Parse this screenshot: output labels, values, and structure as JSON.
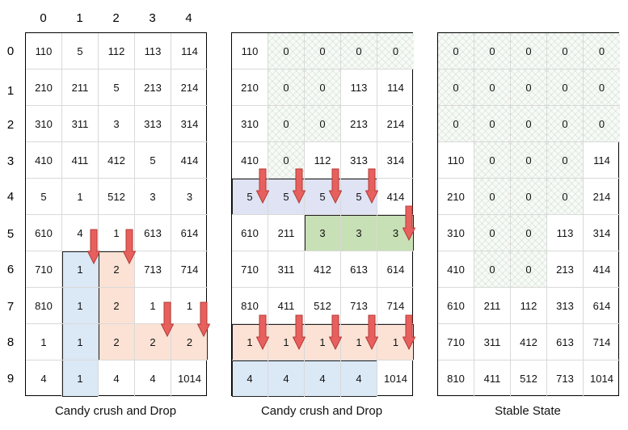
{
  "col_labels": [
    "0",
    "1",
    "2",
    "3",
    "4"
  ],
  "row_labels": [
    "0",
    "1",
    "2",
    "3",
    "4",
    "5",
    "6",
    "7",
    "8",
    "9"
  ],
  "panels": [
    {
      "caption": "Candy crush and Drop",
      "grid": [
        [
          "110",
          "5",
          "112",
          "113",
          "114"
        ],
        [
          "210",
          "211",
          "5",
          "213",
          "214"
        ],
        [
          "310",
          "311",
          "3",
          "313",
          "314"
        ],
        [
          "410",
          "411",
          "412",
          "5",
          "414"
        ],
        [
          "5",
          "1",
          "512",
          "3",
          "3"
        ],
        [
          "610",
          "4",
          "1",
          "613",
          "614"
        ],
        [
          "710",
          "1",
          "2",
          "713",
          "714"
        ],
        [
          "810",
          "1",
          "2",
          "1",
          "1"
        ],
        [
          "1",
          "1",
          "2",
          "2",
          "2"
        ],
        [
          "4",
          "1",
          "4",
          "4",
          "1014"
        ]
      ]
    },
    {
      "caption": "Candy crush and Drop",
      "grid": [
        [
          "110",
          "0",
          "0",
          "0",
          "0"
        ],
        [
          "210",
          "0",
          "0",
          "113",
          "114"
        ],
        [
          "310",
          "0",
          "0",
          "213",
          "214"
        ],
        [
          "410",
          "0",
          "112",
          "313",
          "314"
        ],
        [
          "5",
          "5",
          "5",
          "5",
          "414"
        ],
        [
          "610",
          "211",
          "3",
          "3",
          "3"
        ],
        [
          "710",
          "311",
          "412",
          "613",
          "614"
        ],
        [
          "810",
          "411",
          "512",
          "713",
          "714"
        ],
        [
          "1",
          "1",
          "1",
          "1",
          "1"
        ],
        [
          "4",
          "4",
          "4",
          "4",
          "1014"
        ]
      ]
    },
    {
      "caption": "Stable State",
      "grid": [
        [
          "0",
          "0",
          "0",
          "0",
          "0"
        ],
        [
          "0",
          "0",
          "0",
          "0",
          "0"
        ],
        [
          "0",
          "0",
          "0",
          "0",
          "0"
        ],
        [
          "110",
          "0",
          "0",
          "0",
          "114"
        ],
        [
          "210",
          "0",
          "0",
          "0",
          "214"
        ],
        [
          "310",
          "0",
          "0",
          "113",
          "314"
        ],
        [
          "410",
          "0",
          "0",
          "213",
          "414"
        ],
        [
          "610",
          "211",
          "112",
          "313",
          "614"
        ],
        [
          "710",
          "311",
          "412",
          "613",
          "714"
        ],
        [
          "810",
          "411",
          "512",
          "713",
          "1014"
        ]
      ]
    }
  ]
}
